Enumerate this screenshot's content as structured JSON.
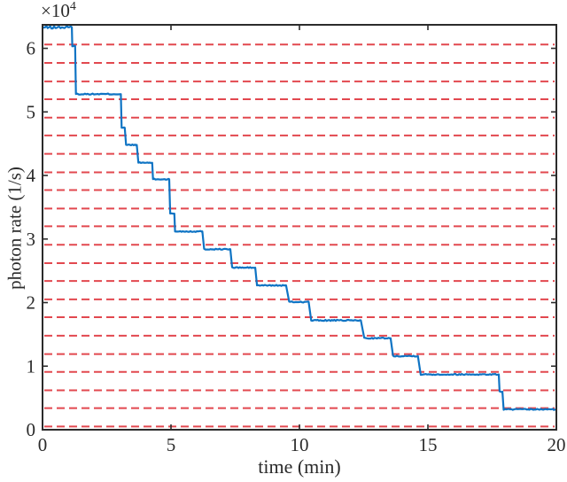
{
  "chart_data": {
    "type": "line",
    "title": "",
    "xlabel": "time (min)",
    "ylabel": "photon rate (1/s)",
    "y_scale_base": "×10",
    "y_scale_exp": "4",
    "xlim": [
      0,
      20
    ],
    "ylim": [
      0,
      6.37
    ],
    "xticks": [
      "0",
      "5",
      "10",
      "15",
      "20"
    ],
    "xtick_values": [
      0,
      5,
      10,
      15,
      20
    ],
    "yticks": [
      "0",
      "1",
      "2",
      "3",
      "4",
      "5",
      "6"
    ],
    "ytick_values": [
      0,
      1,
      2,
      3,
      4,
      5,
      6
    ],
    "grid": {
      "style": "dashed",
      "color": "#e2484f",
      "orientation": "horizontal",
      "values_1e4": [
        0.05,
        0.34,
        0.62,
        0.91,
        1.19,
        1.48,
        1.77,
        2.05,
        2.34,
        2.62,
        2.91,
        3.2,
        3.48,
        3.77,
        4.05,
        4.34,
        4.63,
        4.91,
        5.2,
        5.48,
        5.77,
        6.06
      ]
    },
    "series": [
      {
        "name": "photon rate",
        "color": "#0f74c4",
        "unit": "1e4 photons per second",
        "steps_tstart_tend_level1e4": [
          [
            0.0,
            1.14,
            6.33
          ],
          [
            1.16,
            1.27,
            6.04
          ],
          [
            1.3,
            3.05,
            5.28
          ],
          [
            3.08,
            3.2,
            4.75
          ],
          [
            3.25,
            3.67,
            4.48
          ],
          [
            3.73,
            4.27,
            4.2
          ],
          [
            4.3,
            4.93,
            3.94
          ],
          [
            4.97,
            5.13,
            3.4
          ],
          [
            5.16,
            6.22,
            3.12
          ],
          [
            6.29,
            7.31,
            2.84
          ],
          [
            7.38,
            8.28,
            2.55
          ],
          [
            8.35,
            9.48,
            2.27
          ],
          [
            9.6,
            10.36,
            2.01
          ],
          [
            10.46,
            12.39,
            1.72
          ],
          [
            12.52,
            13.55,
            1.44
          ],
          [
            13.64,
            14.61,
            1.16
          ],
          [
            14.72,
            17.76,
            0.87
          ],
          [
            17.79,
            17.9,
            0.6
          ],
          [
            17.95,
            20.0,
            0.32
          ]
        ]
      }
    ],
    "axis_color": "#2b2b2b",
    "legend": "none"
  }
}
